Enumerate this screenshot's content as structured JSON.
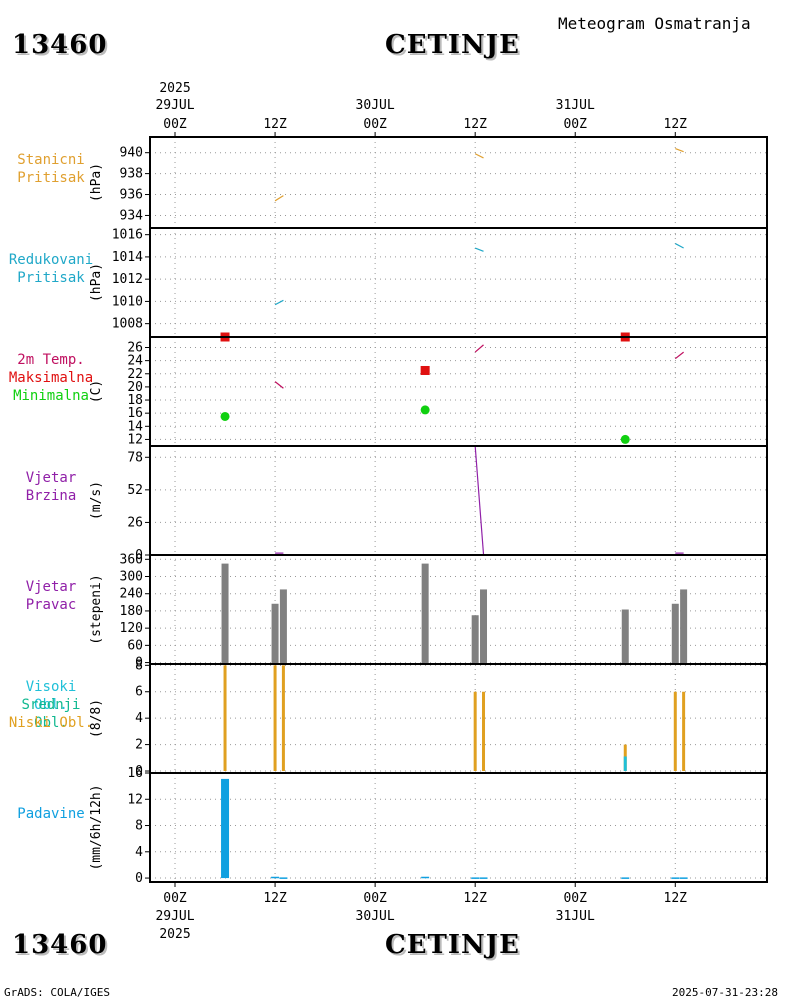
{
  "header": {
    "station_id": "13460",
    "station_name": "CETINJE",
    "chart_title": "Meteogram Osmatranja"
  },
  "footer": {
    "credit": "GrADS: COLA/IGES",
    "timestamp": "2025-07-31-23:28"
  },
  "colors": {
    "pressure": "#e0a030",
    "reduced": "#20a8c8",
    "temp": "#c01060",
    "tmax": "#e01010",
    "tmin": "#10d010",
    "wind": "#9020a8",
    "bar": "#808080",
    "high_cloud": "#20c0d8",
    "mid_cloud": "#10b890",
    "low_cloud": "#e0a020",
    "precip": "#10a0e0"
  },
  "time_axis": {
    "top_year": "2025",
    "top_labels": [
      {
        "line1": "29JUL",
        "line2": "00Z",
        "h": 0
      },
      {
        "line1": "",
        "line2": "12Z",
        "h": 12
      },
      {
        "line1": "30JUL",
        "line2": "00Z",
        "h": 24
      },
      {
        "line1": "",
        "line2": "12Z",
        "h": 36
      },
      {
        "line1": "31JUL",
        "line2": "00Z",
        "h": 48
      },
      {
        "line1": "",
        "line2": "12Z",
        "h": 60
      }
    ],
    "bottom_labels": [
      {
        "line1": "00Z",
        "line2": "29JUL",
        "h": 0
      },
      {
        "line1": "12Z",
        "line2": "",
        "h": 12
      },
      {
        "line1": "00Z",
        "line2": "30JUL",
        "h": 24
      },
      {
        "line1": "12Z",
        "line2": "",
        "h": 36
      },
      {
        "line1": "00Z",
        "line2": "31JUL",
        "h": 48
      },
      {
        "line1": "12Z",
        "line2": "",
        "h": 60
      }
    ],
    "bottom_year": "2025",
    "range_hours": [
      -3,
      71
    ]
  },
  "chart_data": [
    {
      "id": "station-pressure",
      "type": "line",
      "label_lines": [
        "Stanicni",
        "Pritisak"
      ],
      "unit": "(hPa)",
      "ylim": [
        932.8,
        941.5
      ],
      "yticks": [
        934,
        936,
        938,
        940
      ],
      "series": [
        {
          "name": "pressure",
          "points": [
            [
              [
                12.0,
                935.4
              ],
              [
                13.0,
                935.9
              ]
            ],
            [
              [
                36.0,
                939.9
              ],
              [
                37.0,
                939.5
              ]
            ],
            [
              [
                60.0,
                940.4
              ],
              [
                61.0,
                940.1
              ]
            ]
          ]
        }
      ]
    },
    {
      "id": "reduced-pressure",
      "type": "line",
      "label_lines": [
        "Redukovani",
        "Pritisak"
      ],
      "unit": "(hPa)",
      "ylim": [
        1006.8,
        1016.6
      ],
      "yticks": [
        1008,
        1010,
        1012,
        1014,
        1016
      ],
      "series": [
        {
          "name": "reduced",
          "points": [
            [
              [
                12.0,
                1009.7
              ],
              [
                13.0,
                1010.1
              ]
            ],
            [
              [
                36.0,
                1014.8
              ],
              [
                37.0,
                1014.5
              ]
            ],
            [
              [
                60.0,
                1015.2
              ],
              [
                61.0,
                1014.8
              ]
            ]
          ]
        }
      ]
    },
    {
      "id": "temperature",
      "type": "line+scatter",
      "label_lines": [
        "2m Temp.",
        "Maksimalna",
        "Minimalna"
      ],
      "unit": "(C)",
      "ylim": [
        11,
        27.6
      ],
      "yticks": [
        12,
        14,
        16,
        18,
        20,
        22,
        24,
        26
      ],
      "series": [
        {
          "name": "temp",
          "points": [
            [
              [
                12.0,
                20.8
              ],
              [
                13.0,
                19.8
              ]
            ],
            [
              [
                36.0,
                25.3
              ],
              [
                37.0,
                26.4
              ]
            ],
            [
              [
                60.0,
                24.3
              ],
              [
                61.0,
                25.3
              ]
            ]
          ]
        }
      ],
      "tmax": [
        [
          6,
          27.6
        ],
        [
          30,
          22.5
        ],
        [
          54,
          27.6
        ]
      ],
      "tmin": [
        [
          6,
          15.5
        ],
        [
          30,
          16.5
        ],
        [
          54,
          12.0
        ]
      ]
    },
    {
      "id": "wind-speed",
      "type": "line",
      "label_lines": [
        "Vjetar",
        "Brzina"
      ],
      "unit": "(m/s)",
      "ylim": [
        0,
        87
      ],
      "yticks": [
        0,
        26,
        52,
        78
      ],
      "series": [
        {
          "name": "wind",
          "points": [
            [
              [
                12.0,
                1.5
              ],
              [
                13.0,
                1.5
              ]
            ],
            [
              [
                36.0,
                87.0
              ],
              [
                37.0,
                0.5
              ]
            ],
            [
              [
                60.0,
                1.5
              ],
              [
                61.0,
                1.5
              ]
            ]
          ]
        }
      ]
    },
    {
      "id": "wind-direction",
      "type": "bar",
      "label_lines": [
        "Vjetar",
        "Pravac"
      ],
      "unit": "(stepeni)",
      "ylim": [
        -5,
        375
      ],
      "yticks": [
        0,
        60,
        120,
        180,
        240,
        300,
        360
      ],
      "top_tick_label": "360",
      "bars": [
        [
          6,
          345
        ],
        [
          12,
          205
        ],
        [
          13,
          255
        ],
        [
          30,
          345
        ],
        [
          36,
          165
        ],
        [
          37,
          255
        ],
        [
          54,
          185
        ],
        [
          60,
          205
        ],
        [
          61,
          255
        ]
      ]
    },
    {
      "id": "clouds",
      "type": "bar",
      "label_lines": [
        "Visoki Obl.",
        "Srednji Obl.",
        "Niski Obl."
      ],
      "unit": "(8/8)",
      "ylim": [
        -0.15,
        8.1
      ],
      "yticks": [
        0,
        2,
        4,
        6,
        8
      ],
      "low_cloud": [
        [
          6,
          8
        ],
        [
          12,
          8
        ],
        [
          13,
          8
        ],
        [
          36,
          6
        ],
        [
          37,
          6
        ],
        [
          54,
          2
        ],
        [
          60,
          6
        ],
        [
          61,
          6
        ]
      ],
      "high_cloud": [
        [
          54,
          1.1
        ]
      ]
    },
    {
      "id": "precipitation",
      "type": "bar",
      "label_lines": [
        "Padavine"
      ],
      "unit": "(mm/6h/12h)",
      "ylim": [
        -0.6,
        16
      ],
      "yticks": [
        0,
        4,
        8,
        12,
        16
      ],
      "bars": [
        [
          6,
          15.1
        ],
        [
          12,
          0.2
        ],
        [
          13,
          0.1
        ],
        [
          30,
          0.2
        ],
        [
          36,
          0.1
        ],
        [
          37,
          0.1
        ],
        [
          54,
          0.1
        ],
        [
          60,
          0.1
        ],
        [
          61,
          0.1
        ]
      ]
    }
  ]
}
